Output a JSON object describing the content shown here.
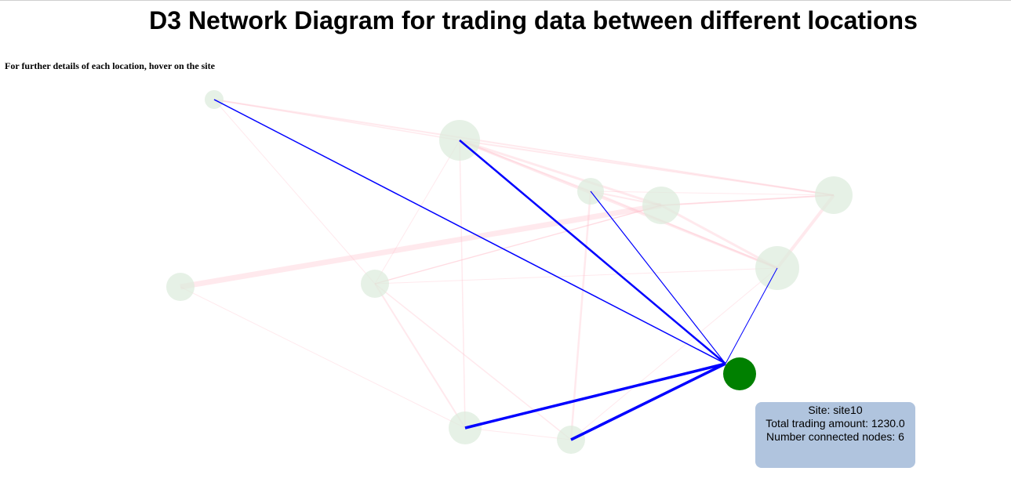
{
  "title": "D3 Network Diagram for trading data between different locations",
  "hint": "For further details of each location, hover on the site",
  "tooltip": {
    "site": "Site: site10",
    "total": "Total trading amount: 1230.0",
    "connected": "Number connected nodes: 6"
  },
  "colors": {
    "node": "#dcebdc",
    "highlight_node": "#008000",
    "link": "#ffc0cb",
    "highlight_link": "#0000ff",
    "tooltip_bg": "#b0c4de"
  }
}
